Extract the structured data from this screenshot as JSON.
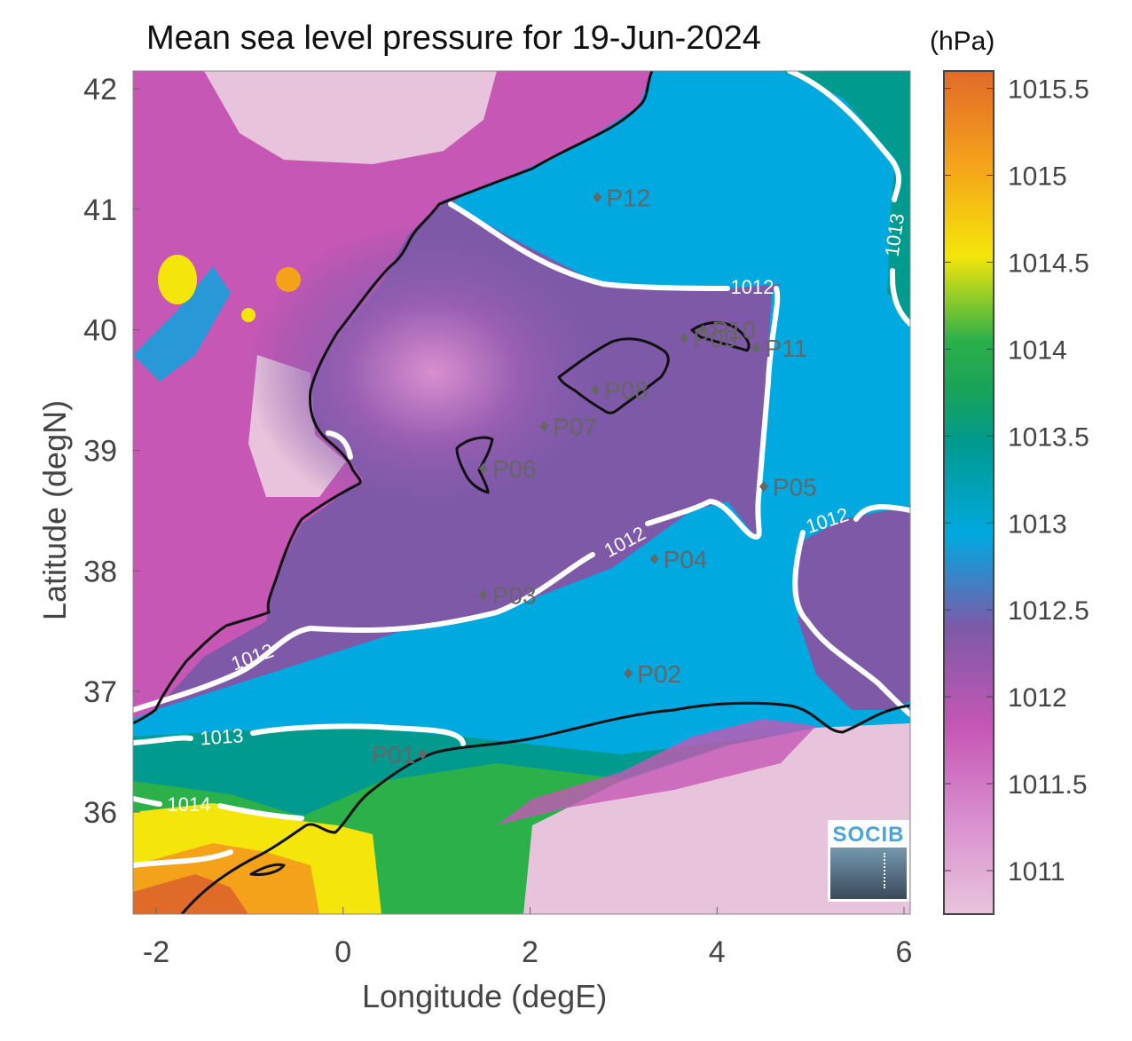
{
  "map": {
    "title": "Mean sea level pressure for 19-Jun-2024",
    "xlabel": "Longitude (degE)",
    "ylabel": "Latitude (degN)",
    "x_ticks": [
      "-2",
      "0",
      "2",
      "4",
      "6"
    ],
    "y_ticks": [
      "36",
      "37",
      "38",
      "39",
      "40",
      "41",
      "42"
    ],
    "contour_labels": [
      "1012",
      "1012",
      "1012",
      "1012",
      "1013",
      "1013",
      "1014"
    ],
    "stations": [
      {
        "id": "P01",
        "lon": 0.85,
        "lat": 36.48
      },
      {
        "id": "P02",
        "lon": 3.05,
        "lat": 37.15
      },
      {
        "id": "P03",
        "lon": 1.5,
        "lat": 37.8
      },
      {
        "id": "P04",
        "lon": 3.33,
        "lat": 38.1
      },
      {
        "id": "P05",
        "lon": 4.5,
        "lat": 38.7
      },
      {
        "id": "P06",
        "lon": 1.5,
        "lat": 38.85
      },
      {
        "id": "P07",
        "lon": 2.15,
        "lat": 39.2
      },
      {
        "id": "P08",
        "lon": 2.7,
        "lat": 39.5
      },
      {
        "id": "P09",
        "lon": 3.65,
        "lat": 39.93
      },
      {
        "id": "P10",
        "lon": 3.85,
        "lat": 40.0
      },
      {
        "id": "P11",
        "lon": 4.42,
        "lat": 39.85
      },
      {
        "id": "P12",
        "lon": 2.72,
        "lat": 41.1
      }
    ]
  },
  "colorbar": {
    "unit": "(hPa)",
    "ticks": [
      "1011",
      "1011.5",
      "1012",
      "1012.5",
      "1013",
      "1013.5",
      "1014",
      "1014.5",
      "1015",
      "1015.5"
    ],
    "colors": [
      "#e8c4dc",
      "#c657b5",
      "#7d59a8",
      "#00a9e0",
      "#009a8e",
      "#2bb04a",
      "#f4e60a",
      "#f5a21b",
      "#e06a28"
    ]
  },
  "logo": {
    "text": "SOCIB"
  }
}
